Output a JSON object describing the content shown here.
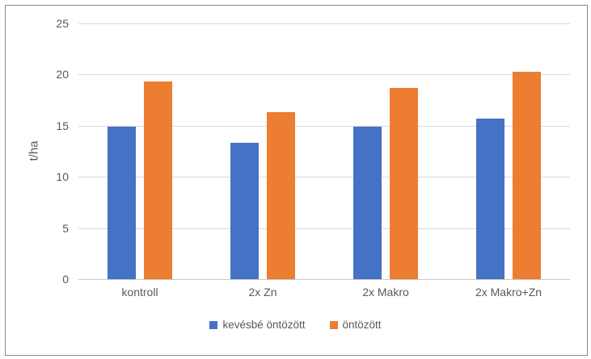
{
  "chart_data": {
    "type": "bar",
    "title": "",
    "xlabel": "",
    "ylabel": "t/ha",
    "categories": [
      "kontroll",
      "2x Zn",
      "2x Makro",
      "2x Makro+Zn"
    ],
    "series": [
      {
        "name": "kevésbé öntözött",
        "color": "#4472C4",
        "values": [
          14.9,
          13.3,
          14.9,
          15.7
        ]
      },
      {
        "name": "öntözött",
        "color": "#ED7D31",
        "values": [
          19.3,
          16.3,
          18.7,
          20.3
        ]
      }
    ],
    "ylim": [
      0,
      25
    ],
    "yticks": [
      0,
      5,
      10,
      15,
      20,
      25
    ],
    "grid": true,
    "legend_position": "bottom"
  },
  "colors": {
    "gridline": "#d9d9d9",
    "axis_text": "#595959",
    "frame_border": "#898989",
    "background": "#ffffff"
  }
}
